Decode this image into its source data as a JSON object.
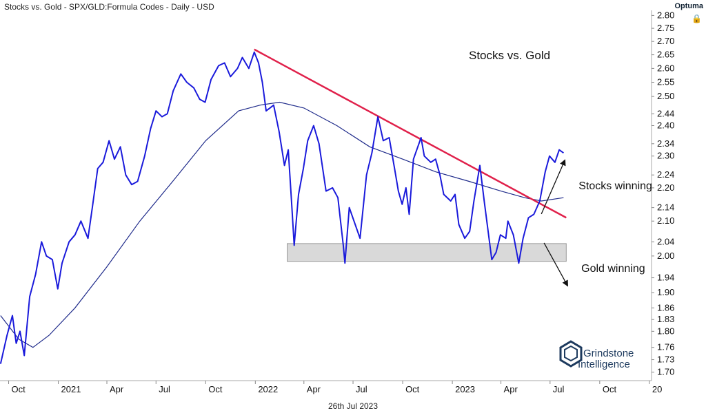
{
  "header": {
    "title": "Stocks vs. Gold - SPX/GLD:Formula Codes - Daily - USD",
    "brand": "Optuma"
  },
  "footer": {
    "date": "26th Jul 2023"
  },
  "colors": {
    "series": "#1a1adb",
    "ma": "#1e2a8a",
    "trend": "#e0204a",
    "zone": "#d9d9d9"
  },
  "chart_data": {
    "type": "line",
    "title": "Stocks vs. Gold",
    "y_scale": "log",
    "ylim": [
      1.68,
      2.82
    ],
    "y_ticks": [
      1.7,
      1.73,
      1.76,
      1.8,
      1.83,
      1.86,
      1.9,
      1.94,
      2.0,
      2.04,
      2.1,
      2.14,
      2.2,
      2.24,
      2.3,
      2.34,
      2.4,
      2.44,
      2.5,
      2.55,
      2.6,
      2.65,
      2.7,
      2.75,
      2.8
    ],
    "x_ticks": [
      "Oct",
      "2021",
      "Apr",
      "Jul",
      "Oct",
      "2022",
      "Apr",
      "Jul",
      "Oct",
      "2023",
      "Apr",
      "Jul",
      "Oct",
      "20"
    ],
    "xlim": [
      "2020-09-15",
      "2024-01-05"
    ],
    "x_tick_dates": [
      "2020-10-01",
      "2021-01-01",
      "2021-04-01",
      "2021-07-01",
      "2021-10-01",
      "2022-01-01",
      "2022-04-01",
      "2022-07-01",
      "2022-10-01",
      "2023-01-01",
      "2023-04-01",
      "2023-07-01",
      "2023-10-01",
      "2024-01-01"
    ],
    "series": [
      {
        "name": "SPX/GLD",
        "points": [
          [
            "2020-09-16",
            1.72
          ],
          [
            "2020-09-28",
            1.79
          ],
          [
            "2020-10-08",
            1.84
          ],
          [
            "2020-10-15",
            1.77
          ],
          [
            "2020-10-22",
            1.8
          ],
          [
            "2020-10-30",
            1.74
          ],
          [
            "2020-11-09",
            1.89
          ],
          [
            "2020-11-20",
            1.95
          ],
          [
            "2020-12-01",
            2.04
          ],
          [
            "2020-12-10",
            2.0
          ],
          [
            "2020-12-21",
            1.99
          ],
          [
            "2020-12-31",
            1.91
          ],
          [
            "2021-01-08",
            1.98
          ],
          [
            "2021-01-21",
            2.04
          ],
          [
            "2021-02-01",
            2.06
          ],
          [
            "2021-02-12",
            2.1
          ],
          [
            "2021-02-25",
            2.05
          ],
          [
            "2021-03-05",
            2.14
          ],
          [
            "2021-03-15",
            2.26
          ],
          [
            "2021-03-25",
            2.28
          ],
          [
            "2021-04-05",
            2.35
          ],
          [
            "2021-04-15",
            2.29
          ],
          [
            "2021-04-26",
            2.33
          ],
          [
            "2021-05-06",
            2.24
          ],
          [
            "2021-05-17",
            2.21
          ],
          [
            "2021-05-28",
            2.22
          ],
          [
            "2021-06-10",
            2.3
          ],
          [
            "2021-06-21",
            2.39
          ],
          [
            "2021-07-01",
            2.45
          ],
          [
            "2021-07-12",
            2.43
          ],
          [
            "2021-07-22",
            2.44
          ],
          [
            "2021-08-02",
            2.52
          ],
          [
            "2021-08-16",
            2.58
          ],
          [
            "2021-08-27",
            2.55
          ],
          [
            "2021-09-09",
            2.53
          ],
          [
            "2021-09-20",
            2.49
          ],
          [
            "2021-09-30",
            2.48
          ],
          [
            "2021-10-11",
            2.56
          ],
          [
            "2021-10-25",
            2.61
          ],
          [
            "2021-11-05",
            2.62
          ],
          [
            "2021-11-16",
            2.57
          ],
          [
            "2021-11-29",
            2.6
          ],
          [
            "2021-12-08",
            2.64
          ],
          [
            "2021-12-20",
            2.6
          ],
          [
            "2021-12-30",
            2.66
          ],
          [
            "2022-01-07",
            2.62
          ],
          [
            "2022-01-14",
            2.55
          ],
          [
            "2022-01-21",
            2.45
          ],
          [
            "2022-01-28",
            2.46
          ],
          [
            "2022-02-04",
            2.47
          ],
          [
            "2022-02-14",
            2.38
          ],
          [
            "2022-02-24",
            2.27
          ],
          [
            "2022-03-03",
            2.32
          ],
          [
            "2022-03-09",
            2.16
          ],
          [
            "2022-03-14",
            2.03
          ],
          [
            "2022-03-22",
            2.18
          ],
          [
            "2022-03-31",
            2.26
          ],
          [
            "2022-04-08",
            2.35
          ],
          [
            "2022-04-19",
            2.4
          ],
          [
            "2022-04-29",
            2.34
          ],
          [
            "2022-05-12",
            2.19
          ],
          [
            "2022-05-24",
            2.2
          ],
          [
            "2022-06-03",
            2.17
          ],
          [
            "2022-06-13",
            2.03
          ],
          [
            "2022-06-16",
            1.98
          ],
          [
            "2022-06-24",
            2.14
          ],
          [
            "2022-07-05",
            2.09
          ],
          [
            "2022-07-14",
            2.05
          ],
          [
            "2022-07-26",
            2.24
          ],
          [
            "2022-08-05",
            2.31
          ],
          [
            "2022-08-16",
            2.43
          ],
          [
            "2022-08-26",
            2.35
          ],
          [
            "2022-09-06",
            2.36
          ],
          [
            "2022-09-16",
            2.26
          ],
          [
            "2022-09-23",
            2.19
          ],
          [
            "2022-09-30",
            2.15
          ],
          [
            "2022-10-07",
            2.2
          ],
          [
            "2022-10-13",
            2.12
          ],
          [
            "2022-10-21",
            2.29
          ],
          [
            "2022-10-31",
            2.34
          ],
          [
            "2022-11-04",
            2.36
          ],
          [
            "2022-11-10",
            2.3
          ],
          [
            "2022-11-22",
            2.28
          ],
          [
            "2022-12-01",
            2.29
          ],
          [
            "2022-12-09",
            2.24
          ],
          [
            "2022-12-16",
            2.18
          ],
          [
            "2022-12-29",
            2.16
          ],
          [
            "2023-01-06",
            2.18
          ],
          [
            "2023-01-13",
            2.09
          ],
          [
            "2023-01-24",
            2.05
          ],
          [
            "2023-02-02",
            2.07
          ],
          [
            "2023-02-10",
            2.16
          ],
          [
            "2023-02-21",
            2.27
          ],
          [
            "2023-03-01",
            2.16
          ],
          [
            "2023-03-10",
            2.05
          ],
          [
            "2023-03-15",
            1.99
          ],
          [
            "2023-03-23",
            2.01
          ],
          [
            "2023-03-31",
            2.06
          ],
          [
            "2023-04-10",
            2.05
          ],
          [
            "2023-04-14",
            2.1
          ],
          [
            "2023-04-24",
            2.06
          ],
          [
            "2023-05-04",
            1.98
          ],
          [
            "2023-05-12",
            2.05
          ],
          [
            "2023-05-22",
            2.11
          ],
          [
            "2023-06-01",
            2.12
          ],
          [
            "2023-06-12",
            2.16
          ],
          [
            "2023-06-22",
            2.25
          ],
          [
            "2023-06-30",
            2.3
          ],
          [
            "2023-07-10",
            2.28
          ],
          [
            "2023-07-18",
            2.32
          ],
          [
            "2023-07-26",
            2.31
          ]
        ]
      },
      {
        "name": "Moving average",
        "points": [
          [
            "2020-09-16",
            1.84
          ],
          [
            "2020-10-20",
            1.78
          ],
          [
            "2020-11-15",
            1.76
          ],
          [
            "2020-12-15",
            1.79
          ],
          [
            "2021-02-01",
            1.86
          ],
          [
            "2021-04-01",
            1.97
          ],
          [
            "2021-06-01",
            2.1
          ],
          [
            "2021-08-01",
            2.22
          ],
          [
            "2021-10-01",
            2.35
          ],
          [
            "2021-12-01",
            2.45
          ],
          [
            "2022-01-10",
            2.47
          ],
          [
            "2022-02-15",
            2.48
          ],
          [
            "2022-04-01",
            2.46
          ],
          [
            "2022-06-01",
            2.4
          ],
          [
            "2022-08-01",
            2.33
          ],
          [
            "2022-10-01",
            2.29
          ],
          [
            "2022-12-01",
            2.25
          ],
          [
            "2023-02-01",
            2.22
          ],
          [
            "2023-04-01",
            2.19
          ],
          [
            "2023-05-15",
            2.17
          ],
          [
            "2023-06-15",
            2.16
          ],
          [
            "2023-07-26",
            2.17
          ]
        ]
      }
    ],
    "trendline": {
      "start": [
        "2021-12-30",
        2.67
      ],
      "end": [
        "2023-07-31",
        2.11
      ]
    },
    "support_zone": {
      "low": 1.985,
      "high": 2.035,
      "start": "2022-03-01",
      "end": "2023-07-31"
    },
    "annotations": [
      {
        "text": "Stocks winning",
        "date": "2023-08-05",
        "y": 2.2,
        "arrow": "up"
      },
      {
        "text": "Gold winning",
        "date": "2023-08-10",
        "y": 1.96,
        "arrow": "down"
      }
    ],
    "logo_lines": [
      "Grindstone",
      "Intelligence"
    ]
  }
}
